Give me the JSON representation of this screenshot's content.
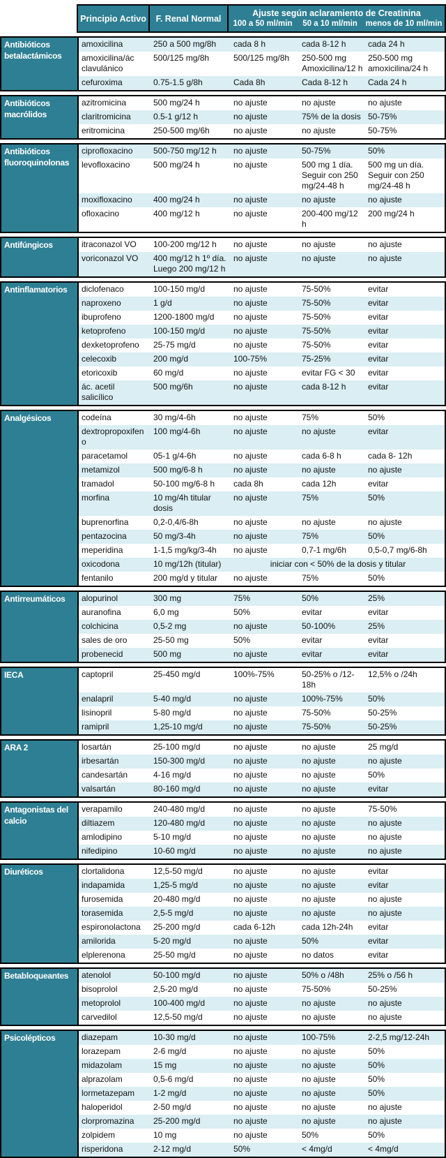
{
  "header": {
    "col_principio": "Principio Activo",
    "col_frenal": "F. Renal Normal",
    "group_title": "Ajuste según aclaramiento de Creatinina",
    "sub_cols": [
      "100 a 50 ml/min",
      "50 a 10 ml/min",
      "menos de 10 ml/min"
    ]
  },
  "colors": {
    "teal": "#2E7F93",
    "band_blue": "#DAEEF3",
    "band_white": "#FFFFFF",
    "border": "#000000",
    "header_text": "#FFFFFF",
    "body_text": "#111111"
  },
  "sections": [
    {
      "category": "Antibióticos betalactámicos",
      "rows": [
        {
          "drug": "amoxicilina",
          "normal": "250 a 500 mg/8h",
          "adj_100_50": "cada 8 h",
          "adj_50_10": "cada 8-12 h",
          "adj_under_10": "cada 24 h",
          "shade": "blue"
        },
        {
          "drug": "amoxicilina/ác clavulánico",
          "normal": "500/125 mg/8h",
          "adj_100_50": "500/125 mg/8h",
          "adj_50_10": "250-500 mg Amoxicilina/12 h",
          "adj_under_10": "250-500 mg amoxicilina/24 h",
          "shade": "white"
        },
        {
          "drug": "cefuroxima",
          "normal": "0.75-1.5 g/8h",
          "adj_100_50": "Cada 8h",
          "adj_50_10": "Cada 8-12 h",
          "adj_under_10": "Cada 24 h",
          "shade": "blue"
        }
      ]
    },
    {
      "category": "Antibióticos macrólidos",
      "rows": [
        {
          "drug": "azitromicina",
          "normal": "500 mg/24 h",
          "adj_100_50": "no ajuste",
          "adj_50_10": "no ajuste",
          "adj_under_10": "no ajuste",
          "shade": "white"
        },
        {
          "drug": "claritromicina",
          "normal": "0.5-1 g/12 h",
          "adj_100_50": "no ajuste",
          "adj_50_10": "75% de la dosis",
          "adj_under_10": "50-75%",
          "shade": "blue"
        },
        {
          "drug": "eritromicina",
          "normal": "250-500 mg/6h",
          "adj_100_50": "no ajuste",
          "adj_50_10": "no ajuste",
          "adj_under_10": "50-75%",
          "shade": "white"
        }
      ]
    },
    {
      "category": "Antibióticos fluoroquinolonas",
      "rows": [
        {
          "drug": "ciprofloxacino",
          "normal": "500-750 mg/12 h",
          "adj_100_50": "no ajuste",
          "adj_50_10": "50-75%",
          "adj_under_10": "50%",
          "shade": "blue"
        },
        {
          "drug": "levofloxacino",
          "normal": "500 mg/24 h",
          "adj_100_50": "no ajuste",
          "adj_50_10": "500 mg 1 día. Seguir con 250 mg/24-48 h",
          "adj_under_10": "500 mg un día. Seguir con 250 mg/24-48 h",
          "shade": "white"
        },
        {
          "drug": "moxifloxacino",
          "normal": "400 mg/24 h",
          "adj_100_50": "no ajuste",
          "adj_50_10": "no ajuste",
          "adj_under_10": "no ajuste",
          "shade": "blue"
        },
        {
          "drug": "ofloxacino",
          "normal": "400 mg/12 h",
          "adj_100_50": "no ajuste",
          "adj_50_10": "200-400 mg/12 h",
          "adj_under_10": "200 mg/24 h",
          "shade": "white"
        }
      ]
    },
    {
      "category": "Antifúngicos",
      "rows": [
        {
          "drug": "itraconazol VO",
          "normal": "100-200 mg/12 h",
          "adj_100_50": "no ajuste",
          "adj_50_10": "no ajuste",
          "adj_under_10": "no ajuste",
          "shade": "white"
        },
        {
          "drug": "voriconazol VO",
          "normal": "400 mg/12 h 1º día. Luego 200 mg/12 h",
          "adj_100_50": "no ajuste",
          "adj_50_10": "no ajuste",
          "adj_under_10": "no ajuste",
          "shade": "blue"
        }
      ]
    },
    {
      "category": "Antinflamatorios",
      "rows": [
        {
          "drug": "diclofenaco",
          "normal": "100-150 mg/d",
          "adj_100_50": "no ajuste",
          "adj_50_10": "75-50%",
          "adj_under_10": "evitar",
          "shade": "white"
        },
        {
          "drug": "naproxeno",
          "normal": "1 g/d",
          "adj_100_50": "no ajuste",
          "adj_50_10": "75-50%",
          "adj_under_10": "evitar",
          "shade": "blue"
        },
        {
          "drug": "ibuprofeno",
          "normal": "1200-1800 mg/d",
          "adj_100_50": "no ajuste",
          "adj_50_10": "75-50%",
          "adj_under_10": "evitar",
          "shade": "white"
        },
        {
          "drug": "ketoprofeno",
          "normal": "100-150 mg/d",
          "adj_100_50": "no ajuste",
          "adj_50_10": "75-50%",
          "adj_under_10": "evitar",
          "shade": "blue"
        },
        {
          "drug": "dexketoprofeno",
          "normal": "25-75 mg/d",
          "adj_100_50": "no ajuste",
          "adj_50_10": "75-50%",
          "adj_under_10": "evitar",
          "shade": "white"
        },
        {
          "drug": "celecoxib",
          "normal": "200 mg/d",
          "adj_100_50": "100-75%",
          "adj_50_10": "75-25%",
          "adj_under_10": "evitar",
          "shade": "blue"
        },
        {
          "drug": "etoricoxib",
          "normal": "60 mg/d",
          "adj_100_50": "no ajuste",
          "adj_50_10": "evitar FG < 30",
          "adj_under_10": "evitar",
          "shade": "white"
        },
        {
          "drug": "ác. acetil salicílico",
          "normal": "500 mg/6h",
          "adj_100_50": "no ajuste",
          "adj_50_10": "cada 8-12 h",
          "adj_under_10": "evitar",
          "shade": "blue"
        }
      ]
    },
    {
      "category": "Analgésicos",
      "rows": [
        {
          "drug": "codeína",
          "normal": "30 mg/4-6h",
          "adj_100_50": "no ajuste",
          "adj_50_10": "75%",
          "adj_under_10": "50%",
          "shade": "white"
        },
        {
          "drug": "dextropropoxifeno",
          "normal": "100 mg/4-6h",
          "adj_100_50": "no ajuste",
          "adj_50_10": "no ajuste",
          "adj_under_10": "evitar",
          "shade": "blue"
        },
        {
          "drug": "paracetamol",
          "normal": "05-1 g/4-6h",
          "adj_100_50": "no ajuste",
          "adj_50_10": "cada 6-8 h",
          "adj_under_10": "cada 8- 12h",
          "shade": "white"
        },
        {
          "drug": "metamizol",
          "normal": "500 mg/6-8 h",
          "adj_100_50": "no ajuste",
          "adj_50_10": "no ajuste",
          "adj_under_10": "no ajuste",
          "shade": "blue"
        },
        {
          "drug": "tramadol",
          "normal": "50-100 mg/6-8 h",
          "adj_100_50": "cada 8h",
          "adj_50_10": "cada 12h",
          "adj_under_10": "evitar",
          "shade": "white"
        },
        {
          "drug": "morfina",
          "normal": "10 mg/4h titular dosis",
          "adj_100_50": "no ajuste",
          "adj_50_10": "75%",
          "adj_under_10": "50%",
          "shade": "blue"
        },
        {
          "drug": "buprenorfina",
          "normal": "0,2-0,4/6-8h",
          "adj_100_50": "no ajuste",
          "adj_50_10": "no ajuste",
          "adj_under_10": "no ajuste",
          "shade": "white"
        },
        {
          "drug": "pentazocina",
          "normal": "50 mg/3-4h",
          "adj_100_50": "no ajuste",
          "adj_50_10": "75%",
          "adj_under_10": "50%",
          "shade": "blue"
        },
        {
          "drug": "meperidina",
          "normal": "1-1,5 mg/kg/3-4h",
          "adj_100_50": "no ajuste",
          "adj_50_10": "0,7-1 mg/6h",
          "adj_under_10": "0,5-0,7 mg/6-8h",
          "shade": "white"
        },
        {
          "drug": "oxicodona",
          "normal": "10 mg/12h (titular)",
          "merged_adjust": "iniciar con < 50% de la dosis y titular",
          "shade": "blue"
        },
        {
          "drug": "fentanilo",
          "normal": "200 mg/d y titular",
          "adj_100_50": "no ajuste",
          "adj_50_10": "75%",
          "adj_under_10": "50%",
          "shade": "white"
        }
      ]
    },
    {
      "category": "Antirreumáticos",
      "rows": [
        {
          "drug": "alopurinol",
          "normal": "300 mg",
          "adj_100_50": "75%",
          "adj_50_10": "50%",
          "adj_under_10": "25%",
          "shade": "blue"
        },
        {
          "drug": "auranofina",
          "normal": "6,0 mg",
          "adj_100_50": "50%",
          "adj_50_10": "evitar",
          "adj_under_10": "evitar",
          "shade": "white"
        },
        {
          "drug": "colchicina",
          "normal": "0,5-2 mg",
          "adj_100_50": "no ajuste",
          "adj_50_10": "50-100%",
          "adj_under_10": "25%",
          "shade": "blue"
        },
        {
          "drug": "sales de oro",
          "normal": "25-50 mg",
          "adj_100_50": "50%",
          "adj_50_10": "evitar",
          "adj_under_10": "evitar",
          "shade": "white"
        },
        {
          "drug": "probenecid",
          "normal": "500 mg",
          "adj_100_50": "no ajuste",
          "adj_50_10": "evitar",
          "adj_under_10": "evitar",
          "shade": "blue"
        }
      ]
    },
    {
      "category": "IECA",
      "rows": [
        {
          "drug": "captopril",
          "normal": "25-450 mg/d",
          "adj_100_50": "100%-75%",
          "adj_50_10": "50-25% o /12-18h",
          "adj_under_10": "12,5% o /24h",
          "shade": "white"
        },
        {
          "drug": "enalapril",
          "normal": "5-40 mg/d",
          "adj_100_50": "no ajuste",
          "adj_50_10": "100%-75%",
          "adj_under_10": "50%",
          "shade": "blue"
        },
        {
          "drug": "lisinopril",
          "normal": "5-80 mg/d",
          "adj_100_50": "no ajuste",
          "adj_50_10": "75-50%",
          "adj_under_10": "50-25%",
          "shade": "white"
        },
        {
          "drug": "ramipril",
          "normal": "1,25-10 mg/d",
          "adj_100_50": "no ajuste",
          "adj_50_10": "75-50%",
          "adj_under_10": "50-25%",
          "shade": "blue"
        }
      ]
    },
    {
      "category": "ARA 2",
      "rows": [
        {
          "drug": "losartán",
          "normal": "25-100 mg/d",
          "adj_100_50": "no ajuste",
          "adj_50_10": "no ajuste",
          "adj_under_10": "25 mg/d",
          "shade": "white"
        },
        {
          "drug": "irbesartán",
          "normal": "150-300 mg/d",
          "adj_100_50": "no ajuste",
          "adj_50_10": "no ajuste",
          "adj_under_10": "no ajuste",
          "shade": "blue"
        },
        {
          "drug": "candesartán",
          "normal": "4-16 mg/d",
          "adj_100_50": "no ajuste",
          "adj_50_10": "no ajuste",
          "adj_under_10": "50%",
          "shade": "white"
        },
        {
          "drug": "valsartán",
          "normal": "80-160 mg/d",
          "adj_100_50": "no ajuste",
          "adj_50_10": "no ajuste",
          "adj_under_10": "evitar",
          "shade": "blue"
        }
      ]
    },
    {
      "category": "Antagonistas del calcio",
      "rows": [
        {
          "drug": "verapamilo",
          "normal": "240-480 mg/d",
          "adj_100_50": "no ajuste",
          "adj_50_10": "no ajuste",
          "adj_under_10": "75-50%",
          "shade": "white"
        },
        {
          "drug": "diltiazem",
          "normal": "120-480 mg/d",
          "adj_100_50": "no ajuste",
          "adj_50_10": "no ajuste",
          "adj_under_10": "no ajuste",
          "shade": "blue"
        },
        {
          "drug": "amlodipino",
          "normal": "5-10 mg/d",
          "adj_100_50": "no ajuste",
          "adj_50_10": "no ajuste",
          "adj_under_10": "no ajuste",
          "shade": "white"
        },
        {
          "drug": "nifedipino",
          "normal": "10-60 mg/d",
          "adj_100_50": "no ajuste",
          "adj_50_10": "no ajuste",
          "adj_under_10": "no ajuste",
          "shade": "blue"
        }
      ]
    },
    {
      "category": "Diuréticos",
      "rows": [
        {
          "drug": "clortalidona",
          "normal": "12,5-50 mg/d",
          "adj_100_50": "no ajuste",
          "adj_50_10": "no ajuste",
          "adj_under_10": "evitar",
          "shade": "white"
        },
        {
          "drug": "indapamida",
          "normal": "1,25-5 mg/d",
          "adj_100_50": "no ajuste",
          "adj_50_10": "no ajuste",
          "adj_under_10": "evitar",
          "shade": "blue"
        },
        {
          "drug": "furosemida",
          "normal": "20-480 mg/d",
          "adj_100_50": "no ajuste",
          "adj_50_10": "no ajuste",
          "adj_under_10": "no ajuste",
          "shade": "white"
        },
        {
          "drug": "torasemida",
          "normal": "2,5-5 mg/d",
          "adj_100_50": "no ajuste",
          "adj_50_10": "no ajuste",
          "adj_under_10": "no ajuste",
          "shade": "blue"
        },
        {
          "drug": "espironolactona",
          "normal": "25-200 mg/d",
          "adj_100_50": "cada 6-12h",
          "adj_50_10": "cada 12h-24h",
          "adj_under_10": "evitar",
          "shade": "white"
        },
        {
          "drug": "amilorida",
          "normal": "5-20 mg/d",
          "adj_100_50": "no ajuste",
          "adj_50_10": "50%",
          "adj_under_10": "evitar",
          "shade": "blue"
        },
        {
          "drug": "elplerenona",
          "normal": "25-50 mg/d",
          "adj_100_50": "no ajuste",
          "adj_50_10": "no datos",
          "adj_under_10": "evitar",
          "shade": "white"
        }
      ]
    },
    {
      "category": "Betabloqueantes",
      "rows": [
        {
          "drug": "atenolol",
          "normal": "50-100 mg/d",
          "adj_100_50": "no ajuste",
          "adj_50_10": "50% o /48h",
          "adj_under_10": "25% o /56 h",
          "shade": "blue"
        },
        {
          "drug": "bisoprolol",
          "normal": "2,5-20 mg/d",
          "adj_100_50": "no ajuste",
          "adj_50_10": "75-50%",
          "adj_under_10": "50-25%",
          "shade": "white"
        },
        {
          "drug": "metoprolol",
          "normal": "100-400 mg/d",
          "adj_100_50": "no ajuste",
          "adj_50_10": "no ajuste",
          "adj_under_10": "no ajuste",
          "shade": "blue"
        },
        {
          "drug": "carvedilol",
          "normal": "12,5-50 mg/d",
          "adj_100_50": "no ajuste",
          "adj_50_10": "no ajuste",
          "adj_under_10": "no ajuste",
          "shade": "white"
        }
      ]
    },
    {
      "category": "Psicolépticos",
      "rows": [
        {
          "drug": "diazepam",
          "normal": "10-30 mg/d",
          "adj_100_50": "no ajuste",
          "adj_50_10": "100-75%",
          "adj_under_10": "2-2,5 mg/12-24h",
          "shade": "blue"
        },
        {
          "drug": "lorazepam",
          "normal": "2-6 mg/d",
          "adj_100_50": "no ajuste",
          "adj_50_10": "no ajuste",
          "adj_under_10": "50%",
          "shade": "white"
        },
        {
          "drug": "midazolam",
          "normal": "15 mg",
          "adj_100_50": "no ajuste",
          "adj_50_10": "no ajuste",
          "adj_under_10": "50%",
          "shade": "blue"
        },
        {
          "drug": "alprazolam",
          "normal": "0,5-6 mg/d",
          "adj_100_50": "no ajuste",
          "adj_50_10": "no ajuste",
          "adj_under_10": "50%",
          "shade": "white"
        },
        {
          "drug": "lormetazepam",
          "normal": "1-2 mg/d",
          "adj_100_50": "no ajuste",
          "adj_50_10": "no ajuste",
          "adj_under_10": "50%",
          "shade": "blue"
        },
        {
          "drug": "haloperidol",
          "normal": "2-50 mg/d",
          "adj_100_50": "no ajuste",
          "adj_50_10": "no ajuste",
          "adj_under_10": "no ajuste",
          "shade": "white"
        },
        {
          "drug": "clorpromazina",
          "normal": "25-200 mg/d",
          "adj_100_50": "no ajuste",
          "adj_50_10": "no ajuste",
          "adj_under_10": "no ajuste",
          "shade": "blue"
        },
        {
          "drug": "zolpidem",
          "normal": "10 mg",
          "adj_100_50": "no ajuste",
          "adj_50_10": "50%",
          "adj_under_10": "50%",
          "shade": "white"
        },
        {
          "drug": "risperidona",
          "normal": "2-12 mg/d",
          "adj_100_50": "50%",
          "adj_50_10": "< 4mg/d",
          "adj_under_10": "< 4mg/d",
          "shade": "blue"
        }
      ]
    }
  ]
}
